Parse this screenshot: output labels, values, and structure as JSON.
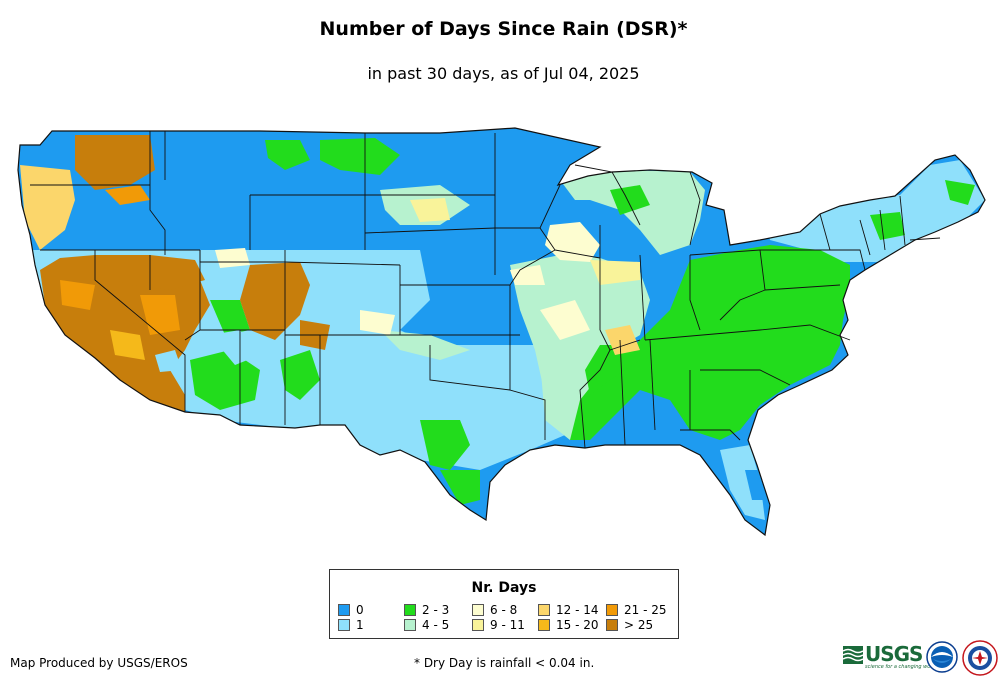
{
  "header": {
    "title": "Number of Days Since Rain (DSR)*",
    "subtitle": "in past 30 days, as of Jul 04, 2025"
  },
  "legend": {
    "title": "Nr. Days",
    "items": [
      {
        "label": "0",
        "color": "#1e9bf0"
      },
      {
        "label": "1",
        "color": "#8fe0fb"
      },
      {
        "label": "2 - 3",
        "color": "#22dc1c"
      },
      {
        "label": "4 - 5",
        "color": "#b7f2cf"
      },
      {
        "label": "6 - 8",
        "color": "#fdfdd0"
      },
      {
        "label": "9 - 11",
        "color": "#f9f39a"
      },
      {
        "label": "12 - 14",
        "color": "#fbd66b"
      },
      {
        "label": "15 - 20",
        "color": "#f5b91a"
      },
      {
        "label": "21 - 25",
        "color": "#f19a07"
      },
      {
        "label": "> 25",
        "color": "#c77e0c"
      }
    ]
  },
  "footer": {
    "credit": "Map Produced by USGS/EROS",
    "note": "* Dry Day is rainfall < 0.04 in."
  },
  "logos": {
    "usgs_text": "USGS",
    "usgs_tagline": "science for a changing world",
    "usgs_icon": "usgs-wave-icon",
    "noaa_icon": "noaa-seal-icon",
    "nws_icon": "nws-seal-icon"
  }
}
